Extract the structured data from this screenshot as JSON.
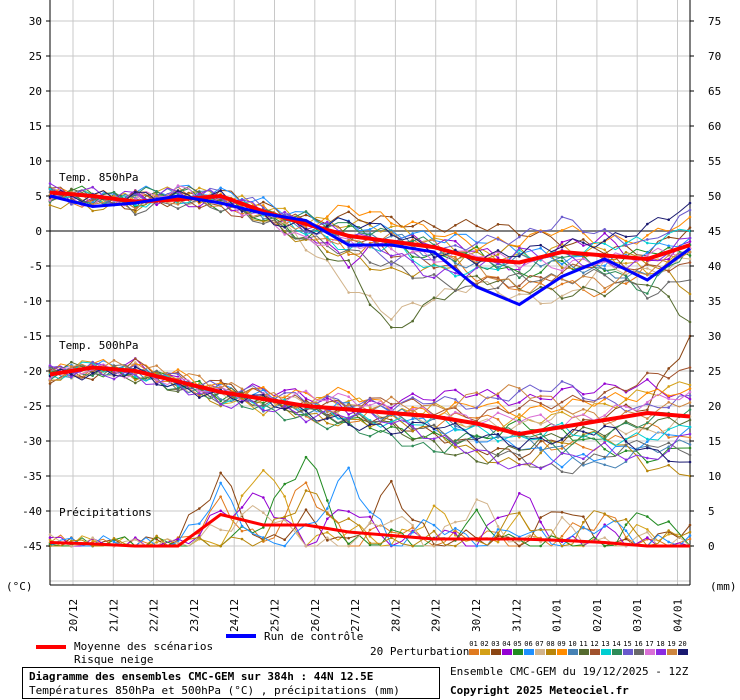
{
  "chart_data": {
    "type": "line",
    "x_dates": [
      "20/12",
      "21/12",
      "22/12",
      "23/12",
      "24/12",
      "25/12",
      "26/12",
      "27/12",
      "28/12",
      "29/12",
      "30/12",
      "31/12",
      "01/01",
      "02/01",
      "03/01",
      "04/01"
    ],
    "y_left_ticks": [
      30,
      25,
      20,
      15,
      10,
      5,
      0,
      -5,
      -10,
      -15,
      -20,
      -25,
      -30,
      -35,
      -40,
      -45
    ],
    "y_right_ticks": [
      75,
      70,
      65,
      60,
      55,
      50,
      45,
      40,
      35,
      30,
      25,
      20,
      15,
      10,
      5,
      0
    ],
    "y_left_unit": "(°C)",
    "y_right_unit": "(mm)",
    "ylim": [
      -45,
      30
    ],
    "grid": true,
    "section_labels": {
      "t850": "Temp. 850hPa",
      "t500": "Temp. 500hPa",
      "precip": "Précipitations"
    },
    "t850_mean": [
      5.5,
      5.0,
      4.2,
      4.5,
      5.0,
      2.8,
      1.0,
      -0.7,
      -1.5,
      -2.3,
      -4.0,
      -4.5,
      -3.0,
      -3.5,
      -4.0,
      -2.0
    ],
    "t850_control": [
      5.0,
      3.5,
      4.0,
      5.0,
      4.0,
      2.5,
      1.5,
      -2.0,
      -2.0,
      -3.0,
      -8.0,
      -10.5,
      -6.5,
      -4.0,
      -7.0,
      -2.5
    ],
    "t500_mean": [
      -20.5,
      -19.5,
      -20.0,
      -21.5,
      -23.0,
      -24.0,
      -25.0,
      -25.5,
      -26.0,
      -26.5,
      -27.5,
      -29.0,
      -28.0,
      -27.0,
      -26.0,
      -26.5
    ],
    "precip_mean_mm": [
      0.5,
      0.3,
      0.0,
      0.0,
      4.5,
      3.0,
      3.0,
      2.0,
      1.5,
      1.0,
      1.0,
      1.0,
      0.8,
      0.5,
      0.0,
      0.0
    ],
    "series_names": {
      "mean": "Moyenne des scénarios",
      "snow": "Risque neige",
      "control": "Run de contrôle",
      "perturbations": "20 Perturbations"
    },
    "perturbation_codes": [
      "01",
      "02",
      "03",
      "04",
      "05",
      "06",
      "07",
      "08",
      "09",
      "10",
      "11",
      "12",
      "13",
      "14",
      "15",
      "16",
      "17",
      "18",
      "19",
      "20"
    ],
    "perturbation_colors": [
      "#e07a1f",
      "#d4a017",
      "#8b4513",
      "#9400d3",
      "#228b22",
      "#1e90ff",
      "#d2b48c",
      "#b8860b",
      "#ff8c00",
      "#4682b4",
      "#556b2f",
      "#a0522d",
      "#00ced1",
      "#2e8b57",
      "#6a5acd",
      "#696969",
      "#da70d6",
      "#8a2be2",
      "#cd853f",
      "#191970"
    ],
    "mean_color": "#ff0000",
    "control_color": "#0000ff",
    "t850_curves": [
      [
        4.5,
        4.0,
        4.5,
        5.5,
        4.0,
        2.0,
        0.5,
        -3.0,
        -1.5,
        -2.5,
        -6.5,
        -8.0,
        -7.5,
        -9.0,
        -5.0,
        -2.5
      ],
      [
        5.5,
        5.0,
        4.5,
        6.0,
        5.0,
        3.5,
        1.5,
        1.0,
        0.5,
        -1.5,
        -3.0,
        -4.0,
        -2.5,
        -3.0,
        -6.0,
        -3.0
      ],
      [
        5.0,
        4.5,
        3.5,
        4.5,
        5.5,
        3.5,
        1.5,
        2.0,
        1.5,
        0.5,
        1.0,
        0.0,
        -1.5,
        -2.5,
        -3.0,
        0.5
      ],
      [
        5.5,
        4.0,
        5.0,
        4.0,
        4.0,
        2.5,
        0.0,
        -4.5,
        -1.0,
        -1.5,
        -2.5,
        -5.5,
        -2.0,
        -1.0,
        -5.0,
        -1.5
      ],
      [
        6.0,
        5.5,
        4.0,
        5.0,
        3.5,
        2.0,
        -1.0,
        0.5,
        -2.0,
        -4.0,
        -3.0,
        -6.5,
        -4.5,
        -5.5,
        -2.5,
        -3.5
      ],
      [
        5.0,
        4.5,
        5.5,
        6.0,
        5.5,
        4.0,
        2.0,
        1.0,
        0.0,
        -1.0,
        -1.0,
        -2.5,
        -4.0,
        -4.5,
        -3.0,
        -1.0
      ],
      [
        5.5,
        5.5,
        4.5,
        4.5,
        4.5,
        3.0,
        -2.0,
        -8.0,
        -12.0,
        -9.5,
        -7.5,
        -9.5,
        -10.0,
        -5.0,
        -6.0,
        -4.0
      ],
      [
        4.0,
        3.5,
        3.5,
        5.0,
        5.0,
        1.5,
        -1.5,
        -3.5,
        -6.0,
        -5.5,
        -3.5,
        -2.5,
        -5.0,
        -3.5,
        -4.0,
        -9.0
      ],
      [
        5.5,
        5.0,
        5.0,
        5.0,
        4.5,
        3.0,
        1.0,
        3.5,
        1.5,
        0.0,
        -2.0,
        -1.5,
        0.5,
        -1.5,
        -1.0,
        2.0
      ],
      [
        5.5,
        4.5,
        4.5,
        5.5,
        5.0,
        2.5,
        0.5,
        -1.0,
        -0.5,
        -3.5,
        -5.0,
        -4.0,
        -4.5,
        -6.0,
        -6.5,
        -3.0
      ],
      [
        5.0,
        5.5,
        4.0,
        6.0,
        4.5,
        2.0,
        -1.5,
        -5.0,
        -14.5,
        -10.0,
        -6.5,
        -8.0,
        -9.0,
        -8.5,
        -7.0,
        -13.0
      ],
      [
        6.0,
        4.0,
        5.0,
        5.0,
        3.0,
        2.0,
        1.5,
        -0.5,
        -3.0,
        -4.5,
        -7.0,
        -7.5,
        -6.0,
        -4.0,
        -5.5,
        -4.5
      ],
      [
        5.5,
        5.0,
        4.0,
        4.5,
        4.5,
        3.0,
        0.0,
        -2.5,
        -2.0,
        -5.5,
        -6.0,
        -3.5,
        -3.5,
        -2.0,
        -1.5,
        0.0
      ],
      [
        5.0,
        4.5,
        5.5,
        5.5,
        4.5,
        2.5,
        2.0,
        0.5,
        -0.5,
        -2.0,
        -4.5,
        -6.0,
        -3.0,
        -5.5,
        -8.5,
        -2.0
      ],
      [
        4.5,
        4.5,
        4.5,
        5.0,
        5.5,
        3.5,
        0.5,
        -1.5,
        -4.0,
        -3.5,
        -1.5,
        -1.0,
        1.5,
        -0.5,
        -2.0,
        3.0
      ],
      [
        5.5,
        5.0,
        3.0,
        4.0,
        3.5,
        1.5,
        -1.0,
        -3.0,
        -5.0,
        -7.0,
        -8.5,
        -6.5,
        -7.0,
        -6.0,
        -9.0,
        -7.0
      ],
      [
        5.0,
        4.0,
        4.5,
        6.0,
        4.0,
        2.0,
        -1.5,
        -1.5,
        -2.5,
        -4.0,
        -3.0,
        -4.5,
        -5.0,
        -4.0,
        -3.5,
        -2.5
      ],
      [
        6.0,
        5.5,
        5.0,
        5.5,
        5.0,
        3.0,
        1.0,
        0.0,
        -3.0,
        -6.5,
        -5.5,
        -3.0,
        -3.5,
        -5.0,
        -4.5,
        -1.0
      ],
      [
        5.5,
        4.5,
        4.0,
        4.5,
        4.0,
        2.5,
        0.5,
        -2.0,
        -1.0,
        -2.0,
        -5.0,
        -8.5,
        -6.5,
        -7.5,
        -5.5,
        -3.0
      ],
      [
        5.0,
        5.0,
        5.0,
        5.0,
        5.0,
        2.0,
        0.0,
        1.5,
        0.0,
        -3.0,
        -4.0,
        -3.0,
        -2.0,
        -1.5,
        0.5,
        4.0
      ]
    ],
    "t500_curves": [
      [
        -20.5,
        -20.0,
        -19.5,
        -22.0,
        -23.5,
        -23.0,
        -26.5,
        -27.0,
        -25.0,
        -27.5,
        -26.0,
        -29.0,
        -31.0,
        -30.5,
        -28.0,
        -29.5
      ],
      [
        -20.0,
        -19.0,
        -20.5,
        -21.0,
        -24.0,
        -25.5,
        -24.5,
        -24.0,
        -26.5,
        -25.0,
        -28.5,
        -27.0,
        -26.5,
        -25.0,
        -23.0,
        -22.0
      ],
      [
        -21.0,
        -20.5,
        -20.0,
        -22.5,
        -22.0,
        -24.5,
        -25.0,
        -26.0,
        -27.5,
        -29.0,
        -31.0,
        -32.0,
        -29.5,
        -26.0,
        -25.0,
        -15.0
      ],
      [
        -20.0,
        -19.5,
        -19.0,
        -21.5,
        -23.0,
        -22.5,
        -23.5,
        -25.5,
        -24.5,
        -23.5,
        -23.0,
        -24.5,
        -23.0,
        -22.5,
        -22.0,
        -24.0
      ],
      [
        -19.5,
        -20.0,
        -20.5,
        -21.0,
        -23.5,
        -24.0,
        -26.0,
        -27.0,
        -28.5,
        -29.5,
        -30.0,
        -27.5,
        -28.5,
        -31.0,
        -32.5,
        -31.0
      ],
      [
        -20.5,
        -19.0,
        -20.0,
        -22.0,
        -22.5,
        -23.5,
        -25.5,
        -25.0,
        -26.0,
        -28.0,
        -29.5,
        -30.5,
        -33.0,
        -32.0,
        -30.0,
        -28.0
      ],
      [
        -20.0,
        -20.5,
        -19.5,
        -22.0,
        -23.0,
        -24.5,
        -24.0,
        -24.5,
        -27.0,
        -26.5,
        -27.5,
        -28.0,
        -26.0,
        -27.5,
        -29.0,
        -26.5
      ],
      [
        -21.0,
        -19.5,
        -20.5,
        -21.5,
        -24.5,
        -24.0,
        -26.5,
        -27.5,
        -27.0,
        -28.5,
        -32.0,
        -33.5,
        -30.0,
        -29.0,
        -33.5,
        -35.0
      ],
      [
        -20.0,
        -19.0,
        -19.5,
        -20.5,
        -22.5,
        -23.0,
        -23.5,
        -23.0,
        -25.5,
        -26.0,
        -24.5,
        -26.0,
        -25.0,
        -24.0,
        -23.5,
        -22.5
      ],
      [
        -20.5,
        -20.0,
        -20.0,
        -22.0,
        -23.5,
        -25.0,
        -25.5,
        -26.5,
        -26.0,
        -27.0,
        -28.0,
        -29.5,
        -31.5,
        -34.0,
        -31.0,
        -30.5
      ],
      [
        -19.5,
        -19.5,
        -21.0,
        -22.5,
        -23.0,
        -24.0,
        -26.0,
        -25.5,
        -28.0,
        -30.5,
        -33.0,
        -31.0,
        -29.0,
        -28.5,
        -27.5,
        -27.0
      ],
      [
        -20.0,
        -20.5,
        -19.0,
        -21.0,
        -22.0,
        -23.5,
        -24.5,
        -25.0,
        -24.0,
        -25.5,
        -26.5,
        -25.0,
        -24.5,
        -23.5,
        -21.0,
        -19.5
      ],
      [
        -21.0,
        -19.0,
        -20.5,
        -21.5,
        -24.0,
        -24.5,
        -25.0,
        -26.5,
        -27.5,
        -27.0,
        -28.5,
        -30.0,
        -28.0,
        -30.0,
        -29.5,
        -28.0
      ],
      [
        -20.5,
        -20.0,
        -20.0,
        -22.5,
        -23.5,
        -25.5,
        -27.0,
        -28.0,
        -29.5,
        -31.5,
        -29.0,
        -28.5,
        -31.0,
        -29.0,
        -27.0,
        -25.5
      ],
      [
        -20.0,
        -19.5,
        -20.0,
        -21.0,
        -22.5,
        -23.0,
        -24.0,
        -24.5,
        -25.0,
        -24.0,
        -25.0,
        -23.0,
        -22.0,
        -24.5,
        -25.5,
        -23.5
      ],
      [
        -19.5,
        -20.0,
        -19.5,
        -22.0,
        -24.0,
        -24.5,
        -25.5,
        -27.0,
        -26.5,
        -28.5,
        -30.5,
        -32.5,
        -34.5,
        -32.0,
        -30.0,
        -32.0
      ],
      [
        -20.5,
        -19.5,
        -20.5,
        -21.5,
        -23.0,
        -24.0,
        -23.5,
        -24.0,
        -25.5,
        -26.0,
        -27.0,
        -26.5,
        -27.5,
        -26.0,
        -24.5,
        -23.0
      ],
      [
        -20.0,
        -20.0,
        -21.0,
        -22.0,
        -24.5,
        -25.0,
        -26.5,
        -26.0,
        -27.0,
        -29.5,
        -31.5,
        -34.0,
        -32.5,
        -31.0,
        -33.0,
        -29.0
      ],
      [
        -21.0,
        -19.0,
        -19.5,
        -20.5,
        -22.0,
        -23.5,
        -25.0,
        -25.5,
        -24.5,
        -25.5,
        -23.5,
        -22.5,
        -25.0,
        -27.0,
        -26.0,
        -24.5
      ],
      [
        -20.5,
        -20.5,
        -20.0,
        -22.5,
        -23.5,
        -24.0,
        -26.0,
        -27.5,
        -28.5,
        -27.5,
        -29.0,
        -30.5,
        -29.5,
        -28.0,
        -31.5,
        -33.0
      ]
    ],
    "precip_curves": [
      [
        0.5,
        0.0,
        0.0,
        0.0,
        6.0,
        0.0,
        9.0,
        0.0,
        3.0,
        0.0,
        2.0,
        0.0,
        1.5,
        4.0,
        0.0,
        1.0
      ],
      [
        0.0,
        0.5,
        0.0,
        0.0,
        0.0,
        12.0,
        0.0,
        2.5,
        0.0,
        5.0,
        0.0,
        3.5,
        0.0,
        0.0,
        2.5,
        0.0
      ],
      [
        0.0,
        0.0,
        0.0,
        1.0,
        10.0,
        0.0,
        4.0,
        0.0,
        8.5,
        0.0,
        1.5,
        0.0,
        6.0,
        0.0,
        0.0,
        3.0
      ],
      [
        0.5,
        0.0,
        0.0,
        0.0,
        4.5,
        7.0,
        0.0,
        6.0,
        0.0,
        2.0,
        0.0,
        7.5,
        0.0,
        2.0,
        0.0,
        0.0
      ],
      [
        0.0,
        0.0,
        0.5,
        0.0,
        0.0,
        3.5,
        13.0,
        0.0,
        1.5,
        0.0,
        4.0,
        0.0,
        0.5,
        0.0,
        5.0,
        0.0
      ],
      [
        0.0,
        0.5,
        0.0,
        0.0,
        8.0,
        0.0,
        2.0,
        10.5,
        0.0,
        3.5,
        0.0,
        2.5,
        0.0,
        3.5,
        0.0,
        1.5
      ],
      [
        0.5,
        0.0,
        0.0,
        0.0,
        2.5,
        5.5,
        0.0,
        0.0,
        4.5,
        0.0,
        6.5,
        0.0,
        3.0,
        0.0,
        1.0,
        0.0
      ],
      [
        0.0,
        0.0,
        0.0,
        0.5,
        0.0,
        1.0,
        7.5,
        3.0,
        0.0,
        1.0,
        0.0,
        4.5,
        0.0,
        5.5,
        0.0,
        2.0
      ]
    ]
  },
  "legend": {
    "mean_label": "Moyenne des scénarios",
    "snow_label": "Risque neige",
    "control_label": "Run de contrôle",
    "perturb_label": "20 Perturbations"
  },
  "footer": {
    "title": "Diagramme des ensembles CMC-GEM sur 384h : 44N 12.5E",
    "subtitle": "Températures 850hPa et 500hPa (°C) , précipitations (mm)",
    "run": "Ensemble CMC-GEM du 19/12/2025 - 12Z",
    "copyright": "Copyright 2025 Meteociel.fr"
  }
}
